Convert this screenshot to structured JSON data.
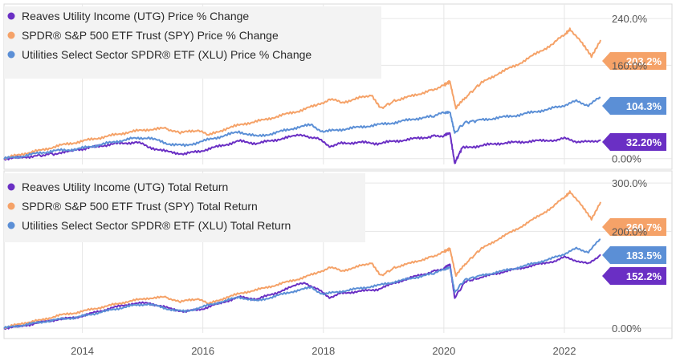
{
  "chart_data": [
    {
      "type": "line",
      "title": "",
      "y_unit": "%",
      "y_range": [
        -10,
        265
      ],
      "y_ticks": [
        {
          "label": "240.0%",
          "value": 240
        },
        {
          "label": "160.0%",
          "value": 160
        },
        {
          "label": "0.00%",
          "value": 0
        }
      ],
      "x_range": [
        2012.7,
        2022.6
      ],
      "series": [
        {
          "name": "Reaves Utility Income (UTG) Price % Change",
          "color": "#6a2fc4",
          "last_label": "32.20%",
          "points": [
            [
              2012.7,
              0
            ],
            [
              2013.0,
              2
            ],
            [
              2013.3,
              6
            ],
            [
              2013.5,
              8
            ],
            [
              2013.8,
              12
            ],
            [
              2014.0,
              16
            ],
            [
              2014.3,
              22
            ],
            [
              2014.6,
              26
            ],
            [
              2014.9,
              28
            ],
            [
              2015.1,
              20
            ],
            [
              2015.4,
              12
            ],
            [
              2015.7,
              8
            ],
            [
              2016.0,
              14
            ],
            [
              2016.3,
              22
            ],
            [
              2016.6,
              30
            ],
            [
              2016.9,
              26
            ],
            [
              2017.2,
              32
            ],
            [
              2017.5,
              38
            ],
            [
              2017.7,
              40
            ],
            [
              2017.9,
              34
            ],
            [
              2018.1,
              22
            ],
            [
              2018.3,
              26
            ],
            [
              2018.6,
              28
            ],
            [
              2018.9,
              26
            ],
            [
              2019.2,
              30
            ],
            [
              2019.5,
              34
            ],
            [
              2019.8,
              38
            ],
            [
              2020.0,
              40
            ],
            [
              2020.1,
              44
            ],
            [
              2020.18,
              -8
            ],
            [
              2020.3,
              18
            ],
            [
              2020.6,
              22
            ],
            [
              2020.9,
              26
            ],
            [
              2021.2,
              28
            ],
            [
              2021.5,
              30
            ],
            [
              2021.8,
              32
            ],
            [
              2022.0,
              34
            ],
            [
              2022.2,
              30
            ],
            [
              2022.4,
              28
            ],
            [
              2022.6,
              32.2
            ]
          ]
        },
        {
          "name": "SPDR® S&P 500 ETF Trust (SPY) Price % Change",
          "color": "#f5a268",
          "last_label": "203.2%",
          "points": [
            [
              2012.7,
              0
            ],
            [
              2013.0,
              8
            ],
            [
              2013.3,
              14
            ],
            [
              2013.6,
              22
            ],
            [
              2013.9,
              28
            ],
            [
              2014.2,
              34
            ],
            [
              2014.5,
              40
            ],
            [
              2014.8,
              46
            ],
            [
              2015.1,
              50
            ],
            [
              2015.4,
              52
            ],
            [
              2015.6,
              44
            ],
            [
              2015.9,
              48
            ],
            [
              2016.1,
              40
            ],
            [
              2016.4,
              52
            ],
            [
              2016.7,
              60
            ],
            [
              2017.0,
              66
            ],
            [
              2017.3,
              74
            ],
            [
              2017.6,
              82
            ],
            [
              2017.9,
              92
            ],
            [
              2018.1,
              102
            ],
            [
              2018.3,
              96
            ],
            [
              2018.6,
              104
            ],
            [
              2018.8,
              110
            ],
            [
              2018.95,
              86
            ],
            [
              2019.2,
              100
            ],
            [
              2019.5,
              108
            ],
            [
              2019.8,
              118
            ],
            [
              2020.0,
              126
            ],
            [
              2020.1,
              132
            ],
            [
              2020.2,
              86
            ],
            [
              2020.35,
              104
            ],
            [
              2020.6,
              128
            ],
            [
              2020.9,
              146
            ],
            [
              2021.2,
              160
            ],
            [
              2021.5,
              178
            ],
            [
              2021.8,
              196
            ],
            [
              2022.0,
              212
            ],
            [
              2022.1,
              222
            ],
            [
              2022.3,
              196
            ],
            [
              2022.45,
              176
            ],
            [
              2022.6,
              203.2
            ]
          ]
        },
        {
          "name": "Utilities Select Sector SPDR® ETF (XLU) Price % Change",
          "color": "#5b8fd6",
          "last_label": "104.3%",
          "points": [
            [
              2012.7,
              0
            ],
            [
              2013.0,
              4
            ],
            [
              2013.3,
              10
            ],
            [
              2013.6,
              14
            ],
            [
              2013.9,
              16
            ],
            [
              2014.2,
              22
            ],
            [
              2014.5,
              28
            ],
            [
              2014.8,
              34
            ],
            [
              2015.1,
              36
            ],
            [
              2015.4,
              26
            ],
            [
              2015.7,
              22
            ],
            [
              2016.0,
              30
            ],
            [
              2016.3,
              38
            ],
            [
              2016.6,
              46
            ],
            [
              2016.9,
              38
            ],
            [
              2017.2,
              44
            ],
            [
              2017.5,
              52
            ],
            [
              2017.8,
              58
            ],
            [
              2018.0,
              46
            ],
            [
              2018.3,
              50
            ],
            [
              2018.6,
              54
            ],
            [
              2018.9,
              58
            ],
            [
              2019.2,
              62
            ],
            [
              2019.5,
              68
            ],
            [
              2019.8,
              72
            ],
            [
              2020.0,
              78
            ],
            [
              2020.1,
              80
            ],
            [
              2020.18,
              44
            ],
            [
              2020.35,
              62
            ],
            [
              2020.6,
              66
            ],
            [
              2020.9,
              70
            ],
            [
              2021.2,
              74
            ],
            [
              2021.5,
              80
            ],
            [
              2021.8,
              86
            ],
            [
              2022.0,
              92
            ],
            [
              2022.2,
              98
            ],
            [
              2022.4,
              92
            ],
            [
              2022.6,
              104.3
            ]
          ]
        }
      ]
    },
    {
      "type": "line",
      "title": "",
      "y_unit": "%",
      "y_range": [
        -10,
        325
      ],
      "y_ticks": [
        {
          "label": "300.0%",
          "value": 300
        },
        {
          "label": "200.0%",
          "value": 200
        },
        {
          "label": "0.00%",
          "value": 0
        }
      ],
      "x_range": [
        2012.7,
        2022.6
      ],
      "x_ticks": [
        "2014",
        "2016",
        "2018",
        "2020",
        "2022"
      ],
      "x_tick_values": [
        2014,
        2016,
        2018,
        2020,
        2022
      ],
      "series": [
        {
          "name": "Reaves Utility Income (UTG) Total Return",
          "color": "#6a2fc4",
          "last_label": "152.2%",
          "points": [
            [
              2012.7,
              0
            ],
            [
              2013.0,
              4
            ],
            [
              2013.3,
              12
            ],
            [
              2013.6,
              18
            ],
            [
              2013.9,
              22
            ],
            [
              2014.2,
              32
            ],
            [
              2014.5,
              42
            ],
            [
              2014.8,
              50
            ],
            [
              2015.1,
              52
            ],
            [
              2015.4,
              42
            ],
            [
              2015.7,
              34
            ],
            [
              2016.0,
              40
            ],
            [
              2016.3,
              52
            ],
            [
              2016.6,
              64
            ],
            [
              2016.9,
              60
            ],
            [
              2017.2,
              72
            ],
            [
              2017.5,
              86
            ],
            [
              2017.7,
              94
            ],
            [
              2017.9,
              80
            ],
            [
              2018.1,
              64
            ],
            [
              2018.3,
              72
            ],
            [
              2018.6,
              76
            ],
            [
              2018.9,
              80
            ],
            [
              2019.2,
              94
            ],
            [
              2019.5,
              106
            ],
            [
              2019.8,
              116
            ],
            [
              2020.0,
              124
            ],
            [
              2020.1,
              132
            ],
            [
              2020.18,
              62
            ],
            [
              2020.35,
              96
            ],
            [
              2020.6,
              104
            ],
            [
              2020.9,
              114
            ],
            [
              2021.2,
              122
            ],
            [
              2021.5,
              130
            ],
            [
              2021.8,
              138
            ],
            [
              2022.0,
              146
            ],
            [
              2022.2,
              140
            ],
            [
              2022.4,
              132
            ],
            [
              2022.6,
              152.2
            ]
          ]
        },
        {
          "name": "SPDR® S&P 500 ETF Trust (SPY) Total Return",
          "color": "#f5a268",
          "last_label": "260.7%",
          "points": [
            [
              2012.7,
              0
            ],
            [
              2013.0,
              10
            ],
            [
              2013.3,
              16
            ],
            [
              2013.6,
              26
            ],
            [
              2013.9,
              32
            ],
            [
              2014.2,
              40
            ],
            [
              2014.5,
              48
            ],
            [
              2014.8,
              56
            ],
            [
              2015.1,
              62
            ],
            [
              2015.4,
              64
            ],
            [
              2015.6,
              54
            ],
            [
              2015.9,
              60
            ],
            [
              2016.1,
              50
            ],
            [
              2016.4,
              64
            ],
            [
              2016.7,
              74
            ],
            [
              2017.0,
              82
            ],
            [
              2017.3,
              92
            ],
            [
              2017.6,
              102
            ],
            [
              2017.9,
              114
            ],
            [
              2018.1,
              126
            ],
            [
              2018.3,
              118
            ],
            [
              2018.6,
              128
            ],
            [
              2018.8,
              136
            ],
            [
              2018.95,
              108
            ],
            [
              2019.2,
              126
            ],
            [
              2019.5,
              136
            ],
            [
              2019.8,
              148
            ],
            [
              2020.0,
              158
            ],
            [
              2020.1,
              164
            ],
            [
              2020.2,
              108
            ],
            [
              2020.35,
              132
            ],
            [
              2020.6,
              162
            ],
            [
              2020.9,
              184
            ],
            [
              2021.2,
              204
            ],
            [
              2021.5,
              226
            ],
            [
              2021.8,
              250
            ],
            [
              2022.0,
              270
            ],
            [
              2022.1,
              282
            ],
            [
              2022.3,
              250
            ],
            [
              2022.45,
              226
            ],
            [
              2022.6,
              260.7
            ]
          ]
        },
        {
          "name": "Utilities Select Sector SPDR® ETF (XLU) Total Return",
          "color": "#5b8fd6",
          "last_label": "183.5%",
          "points": [
            [
              2012.7,
              0
            ],
            [
              2013.0,
              6
            ],
            [
              2013.3,
              12
            ],
            [
              2013.6,
              18
            ],
            [
              2013.9,
              22
            ],
            [
              2014.2,
              30
            ],
            [
              2014.5,
              38
            ],
            [
              2014.8,
              46
            ],
            [
              2015.1,
              50
            ],
            [
              2015.4,
              40
            ],
            [
              2015.7,
              34
            ],
            [
              2016.0,
              44
            ],
            [
              2016.3,
              54
            ],
            [
              2016.6,
              64
            ],
            [
              2016.9,
              56
            ],
            [
              2017.2,
              66
            ],
            [
              2017.5,
              76
            ],
            [
              2017.8,
              84
            ],
            [
              2018.0,
              70
            ],
            [
              2018.3,
              76
            ],
            [
              2018.6,
              82
            ],
            [
              2018.9,
              88
            ],
            [
              2019.2,
              96
            ],
            [
              2019.5,
              104
            ],
            [
              2019.8,
              112
            ],
            [
              2020.0,
              120
            ],
            [
              2020.1,
              126
            ],
            [
              2020.18,
              74
            ],
            [
              2020.35,
              100
            ],
            [
              2020.6,
              108
            ],
            [
              2020.9,
              116
            ],
            [
              2021.2,
              124
            ],
            [
              2021.5,
              134
            ],
            [
              2021.8,
              144
            ],
            [
              2022.0,
              154
            ],
            [
              2022.2,
              164
            ],
            [
              2022.4,
              158
            ],
            [
              2022.6,
              183.5
            ]
          ]
        }
      ]
    }
  ]
}
